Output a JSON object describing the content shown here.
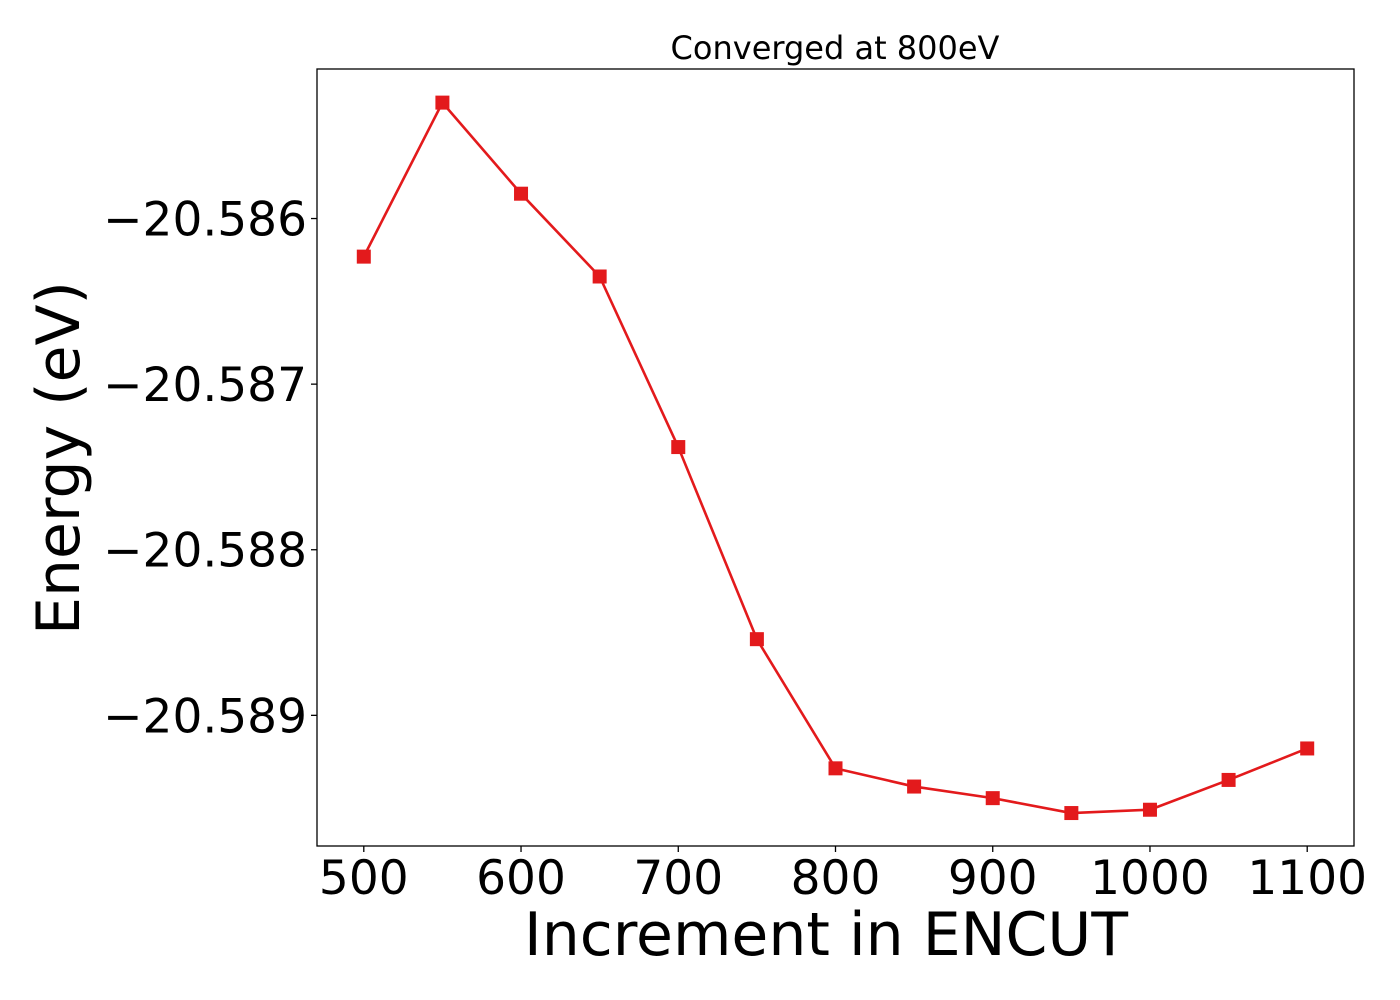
{
  "chart_data": {
    "type": "line",
    "title": "Converged at 800eV",
    "xlabel": "Increment in ENCUT",
    "ylabel": "Energy (eV)",
    "x": [
      500,
      550,
      600,
      650,
      700,
      750,
      800,
      850,
      900,
      950,
      1000,
      1050,
      1100
    ],
    "series": [
      {
        "values": [
          -20.58623,
          -20.5853,
          -20.58585,
          -20.58635,
          -20.58738,
          -20.58854,
          -20.58932,
          -20.58943,
          -20.5895,
          -20.58959,
          -20.58957,
          -20.58939,
          -20.5892
        ],
        "color": "#e31a1c",
        "marker": "square"
      }
    ],
    "xlim": [
      470.24,
      1129.76
    ],
    "ylim": [
      -20.589789,
      -20.585097
    ],
    "xticks": [
      500,
      600,
      700,
      800,
      900,
      1000,
      1100
    ],
    "xtick_labels": [
      "500",
      "600",
      "700",
      "800",
      "900",
      "1000",
      "1100"
    ],
    "yticks": [
      -20.586,
      -20.587,
      -20.588,
      -20.589
    ],
    "ytick_labels": [
      "−20.586",
      "−20.587",
      "−20.588",
      "−20.589"
    ],
    "grid": false,
    "legend": false
  }
}
